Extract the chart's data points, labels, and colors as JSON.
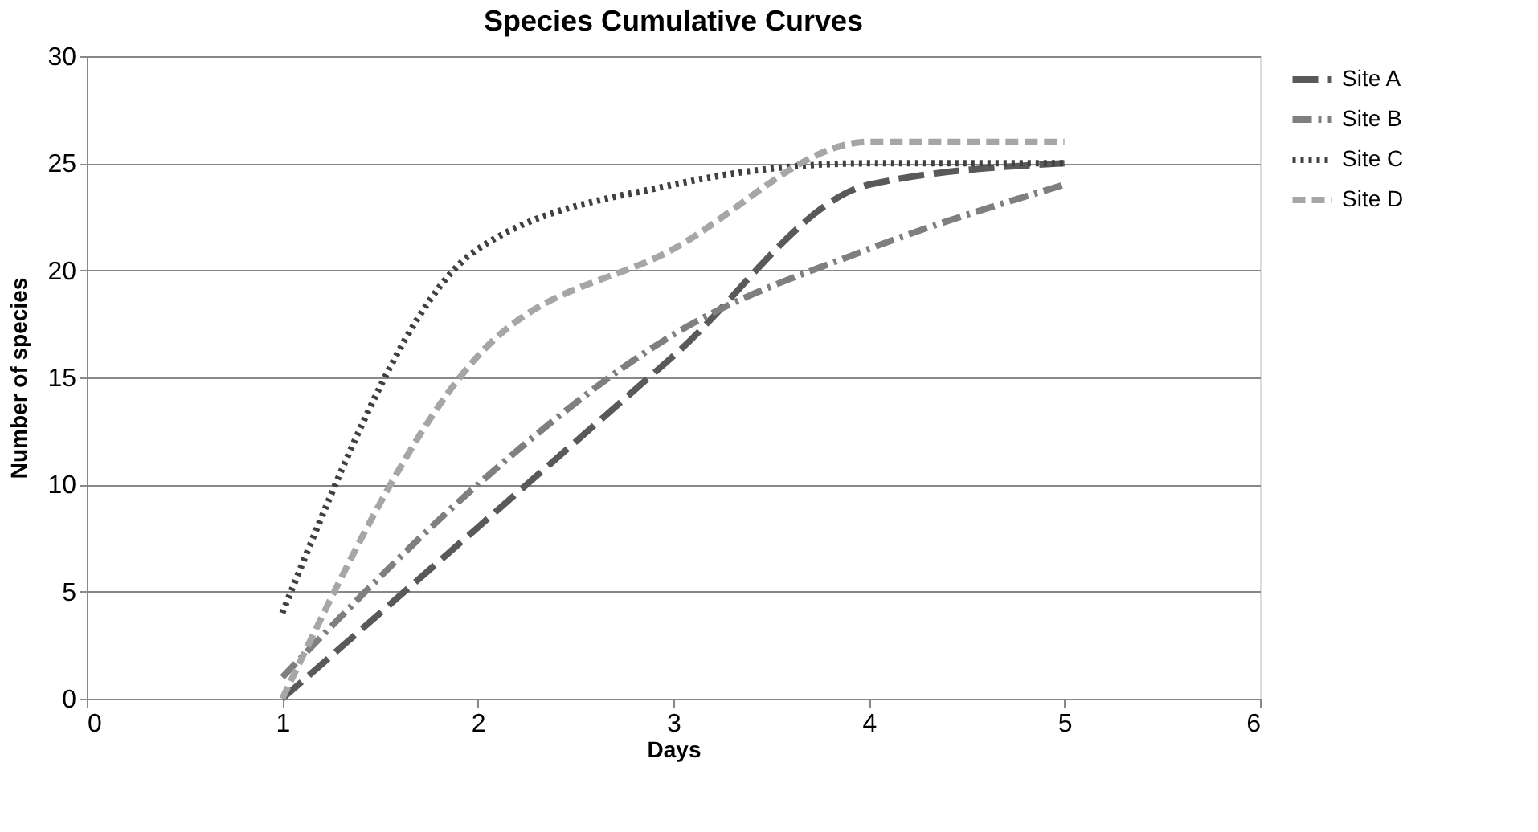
{
  "chart_data": {
    "type": "line",
    "title": "Species Cumulative Curves",
    "xlabel": "Days",
    "ylabel": "Number of species",
    "x": [
      1,
      2,
      3,
      4,
      5
    ],
    "series": [
      {
        "name": "Site A",
        "color": "#595959",
        "line_style": "longdash",
        "values": [
          0,
          8,
          16,
          24,
          25
        ]
      },
      {
        "name": "Site B",
        "color": "#7f7f7f",
        "line_style": "dashdot",
        "values": [
          1,
          10,
          17,
          21,
          24
        ]
      },
      {
        "name": "Site C",
        "color": "#404040",
        "line_style": "dotted",
        "values": [
          4,
          21,
          24,
          25,
          25
        ]
      },
      {
        "name": "Site D",
        "color": "#a6a6a6",
        "line_style": "dashed",
        "values": [
          0,
          16,
          21,
          26,
          26
        ]
      }
    ],
    "xlim": [
      0,
      6
    ],
    "xticks": [
      0,
      1,
      2,
      3,
      4,
      5,
      6
    ],
    "ylim": [
      0,
      30
    ],
    "yticks": [
      0,
      5,
      10,
      15,
      20,
      25,
      30
    ],
    "grid": "y",
    "legend": "right",
    "marker": "none"
  }
}
